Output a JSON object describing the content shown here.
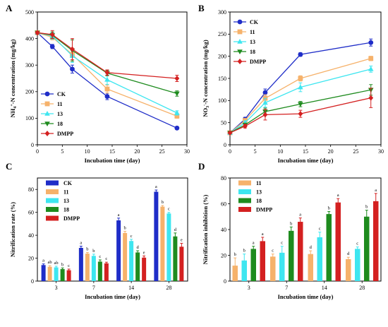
{
  "colors": {
    "CK": "#1f2dc8",
    "11": "#f6b26b",
    "13": "#3ee6f0",
    "18": "#1e8b1e",
    "DMPP": "#d42020"
  },
  "chart_data": [
    {
      "panel": "A",
      "type": "line",
      "xlabel": "Incubation time (day)",
      "ylabel": "NH4+-N concentration (mg/kg)",
      "xlim": [
        0,
        30
      ],
      "ylim": [
        0,
        500
      ],
      "xticks": [
        0,
        5,
        10,
        15,
        20,
        25,
        30
      ],
      "yticks": [
        0,
        100,
        200,
        300,
        400,
        500
      ],
      "legend_position": "bottom-left",
      "x": [
        0,
        3,
        7,
        14,
        28
      ],
      "series": [
        {
          "name": "CK",
          "marker": "circle",
          "values": [
            422,
            370,
            285,
            182,
            63
          ],
          "errors": [
            5,
            8,
            15,
            12,
            5
          ]
        },
        {
          "name": "11",
          "marker": "square",
          "values": [
            422,
            405,
            340,
            210,
            108
          ],
          "errors": [
            5,
            10,
            20,
            15,
            8
          ]
        },
        {
          "name": "13",
          "marker": "triangle-up",
          "values": [
            422,
            410,
            335,
            245,
            120
          ],
          "errors": [
            5,
            12,
            25,
            18,
            8
          ]
        },
        {
          "name": "18",
          "marker": "triangle-down",
          "values": [
            422,
            413,
            355,
            270,
            193
          ],
          "errors": [
            5,
            12,
            40,
            10,
            10
          ]
        },
        {
          "name": "DMPP",
          "marker": "diamond",
          "values": [
            422,
            415,
            360,
            272,
            250
          ],
          "errors": [
            5,
            15,
            40,
            10,
            12
          ]
        }
      ]
    },
    {
      "panel": "B",
      "type": "line",
      "xlabel": "Incubation time (day)",
      "ylabel": "NO3--N concentration (mg/kg)",
      "xlim": [
        0,
        30
      ],
      "ylim": [
        0,
        300
      ],
      "xticks": [
        0,
        5,
        10,
        15,
        20,
        25,
        30
      ],
      "yticks": [
        0,
        50,
        100,
        150,
        200,
        250,
        300
      ],
      "legend_position": "top-left",
      "x": [
        0,
        3,
        7,
        14,
        28
      ],
      "series": [
        {
          "name": "CK",
          "marker": "circle",
          "values": [
            27,
            58,
            118,
            204,
            231
          ],
          "errors": [
            2,
            4,
            8,
            4,
            8
          ]
        },
        {
          "name": "11",
          "marker": "square",
          "values": [
            27,
            55,
            105,
            150,
            195
          ],
          "errors": [
            2,
            4,
            8,
            6,
            5
          ]
        },
        {
          "name": "13",
          "marker": "triangle-up",
          "values": [
            27,
            50,
            95,
            130,
            171
          ],
          "errors": [
            2,
            4,
            10,
            10,
            7
          ]
        },
        {
          "name": "18",
          "marker": "triangle-down",
          "values": [
            27,
            45,
            75,
            92,
            124
          ],
          "errors": [
            2,
            4,
            8,
            6,
            12
          ]
        },
        {
          "name": "DMPP",
          "marker": "diamond",
          "values": [
            27,
            42,
            68,
            70,
            106
          ],
          "errors": [
            2,
            4,
            12,
            8,
            22
          ]
        }
      ]
    },
    {
      "panel": "C",
      "type": "bar",
      "xlabel": "Incubation time (day)",
      "ylabel": "Nitrification rate (%)",
      "ylim": [
        0,
        90
      ],
      "yticks": [
        0,
        20,
        40,
        60,
        80
      ],
      "legend_position": "top-left",
      "categories": [
        "3",
        "7",
        "14",
        "28"
      ],
      "series": [
        {
          "name": "CK",
          "values": [
            14,
            29,
            53,
            78
          ],
          "errors": [
            1,
            1.5,
            2,
            1.5
          ],
          "letters": [
            "a",
            "a",
            "a",
            "a"
          ]
        },
        {
          "name": "11",
          "values": [
            12.5,
            24,
            42,
            65
          ],
          "errors": [
            1,
            1,
            1.5,
            1
          ],
          "letters": [
            "ab",
            "b",
            "b",
            "b"
          ]
        },
        {
          "name": "13",
          "values": [
            12,
            22,
            35,
            59
          ],
          "errors": [
            1,
            1.5,
            1.5,
            1
          ],
          "letters": [
            "ab",
            "b",
            "c",
            "c"
          ]
        },
        {
          "name": "18",
          "values": [
            10.5,
            17,
            25,
            39
          ],
          "errors": [
            1,
            1.5,
            1.5,
            3
          ],
          "letters": [
            "b",
            "c",
            "d",
            "d"
          ]
        },
        {
          "name": "DMPP",
          "values": [
            9.5,
            15.5,
            20.5,
            30
          ],
          "errors": [
            1,
            1,
            1.5,
            3
          ],
          "letters": [
            "c",
            "c",
            "e",
            "e"
          ]
        }
      ]
    },
    {
      "panel": "D",
      "type": "bar",
      "xlabel": "Incubation time (day)",
      "ylabel": "Nitrification inhibition (%)",
      "ylim": [
        0,
        80
      ],
      "yticks": [
        0,
        20,
        40,
        60,
        80
      ],
      "legend_position": "top-left",
      "categories": [
        "3",
        "7",
        "14",
        "28"
      ],
      "series": [
        {
          "name": "11",
          "values": [
            12,
            19,
            21,
            17
          ],
          "errors": [
            6,
            2,
            2.5,
            1.5
          ],
          "letters": [
            "b",
            "c",
            "d",
            "d"
          ]
        },
        {
          "name": "13",
          "values": [
            16,
            22,
            34,
            25
          ],
          "errors": [
            5,
            5,
            4,
            1.5
          ],
          "letters": [
            "b",
            "c",
            "c",
            "c"
          ]
        },
        {
          "name": "18",
          "values": [
            25,
            39,
            52,
            50
          ],
          "errors": [
            2,
            3,
            2,
            5
          ],
          "letters": [
            "a",
            "b",
            "b",
            "b"
          ]
        },
        {
          "name": "DMPP",
          "values": [
            31,
            46,
            61,
            62
          ],
          "errors": [
            3,
            3,
            3,
            6
          ],
          "letters": [
            "a",
            "a",
            "a",
            "a"
          ]
        }
      ]
    }
  ]
}
